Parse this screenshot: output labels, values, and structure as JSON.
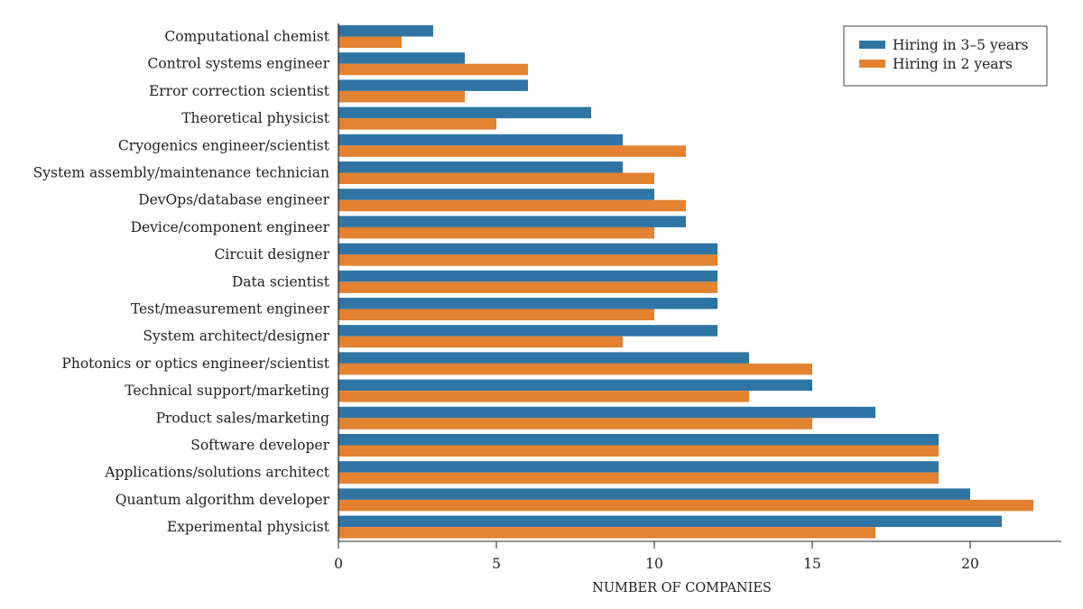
{
  "chart_data": {
    "type": "bar",
    "orientation": "horizontal",
    "title": "",
    "xlabel": "NUMBER OF COMPANIES",
    "ylabel": "",
    "xlim": [
      0,
      23
    ],
    "xticks": [
      0,
      5,
      10,
      15,
      20
    ],
    "grid": false,
    "legend_position": "top-right",
    "categories": [
      "Computational chemist",
      "Control systems engineer",
      "Error correction scientist",
      "Theoretical physicist",
      "Cryogenics engineer/scientist",
      "System assembly/maintenance technician",
      "DevOps/database engineer",
      "Device/component engineer",
      "Circuit designer",
      "Data scientist",
      "Test/measurement engineer",
      "System architect/designer",
      "Photonics or optics engineer/scientist",
      "Technical support/marketing",
      "Product sales/marketing",
      "Software developer",
      "Applications/solutions architect",
      "Quantum algorithm developer",
      "Experimental physicist"
    ],
    "series": [
      {
        "name": "Hiring in 3–5 years",
        "color": "#2e75a5",
        "values": [
          3,
          4,
          6,
          8,
          9,
          9,
          10,
          11,
          12,
          12,
          12,
          12,
          13,
          15,
          17,
          19,
          19,
          20,
          21
        ]
      },
      {
        "name": "Hiring in 2 years",
        "color": "#e38230",
        "values": [
          2,
          6,
          4,
          5,
          11,
          10,
          11,
          10,
          12,
          12,
          10,
          9,
          15,
          13,
          15,
          19,
          19,
          22,
          17
        ]
      }
    ]
  }
}
